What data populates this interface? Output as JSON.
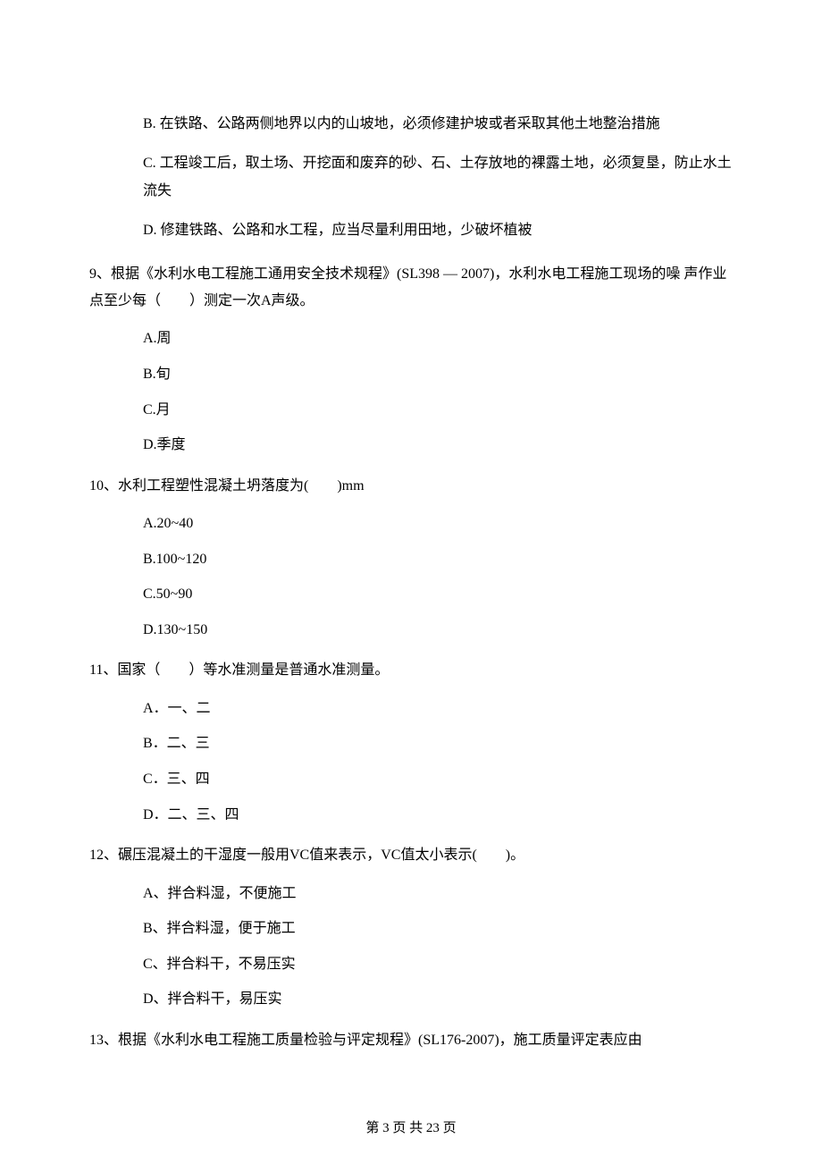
{
  "doc": {
    "font_family": "SimSun",
    "text_color": "#000000",
    "background": "#ffffff"
  },
  "q8": {
    "B": "B. 在铁路、公路两侧地界以内的山坡地，必须修建护坡或者采取其他土地整治措施",
    "C": "C. 工程竣工后，取土场、开挖面和废弃的砂、石、土存放地的裸露土地，必须复垦，防止水土流失",
    "D": "D. 修建铁路、公路和水工程，应当尽量利用田地，少破坏植被"
  },
  "q9": {
    "stem": "9、根据《水利水电工程施工通用安全技术规程》(SL398 — 2007)，水利水电工程施工现场的噪 声作业点至少每（　　）测定一次A声级。",
    "A": "A.周",
    "B": "B.旬",
    "C": "C.月",
    "D": "D.季度"
  },
  "q10": {
    "stem": "10、水利工程塑性混凝土坍落度为(　　)mm",
    "A": "A.20~40",
    "B": "B.100~120",
    "C": "C.50~90",
    "D": "D.130~150"
  },
  "q11": {
    "stem": "11、国家（　　）等水准测量是普通水准测量。",
    "A": "A．一、二",
    "B": "B．二、三",
    "C": "C．三、四",
    "D": "D．二、三、四"
  },
  "q12": {
    "stem": "12、碾压混凝土的干湿度一般用VC值来表示，VC值太小表示(　　)。",
    "A": "A、拌合料湿，不便施工",
    "B": "B、拌合料湿，便于施工",
    "C": "C、拌合料干，不易压实",
    "D": "D、拌合料干，易压实"
  },
  "q13": {
    "stem": "13、根据《水利水电工程施工质量检验与评定规程》(SL176-2007)，施工质量评定表应由"
  },
  "footer": "第 3 页 共 23 页"
}
